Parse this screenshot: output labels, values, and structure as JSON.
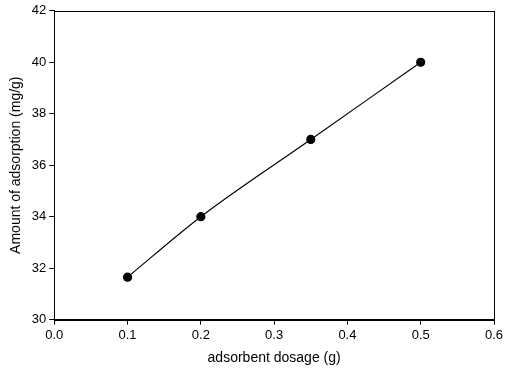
{
  "chart_data": {
    "type": "line",
    "x_label": "adsorbent dosage (g)",
    "y_label": "Amount of adsorption (mg/g)",
    "x": [
      0.1,
      0.2,
      0.35,
      0.5
    ],
    "values": [
      31.65,
      34,
      37,
      40
    ],
    "color": "#000000",
    "marker": "circle",
    "line_style": "solid",
    "xlim": [
      0,
      0.6
    ],
    "xticks": [
      {
        "value": 0,
        "label": "0.0"
      },
      0.1,
      0.2,
      0.3,
      0.4,
      0.5,
      0.6
    ],
    "ylim": [
      30,
      42
    ],
    "yticks": [
      30,
      32,
      34,
      36,
      38,
      40,
      42
    ],
    "grid": false
  }
}
